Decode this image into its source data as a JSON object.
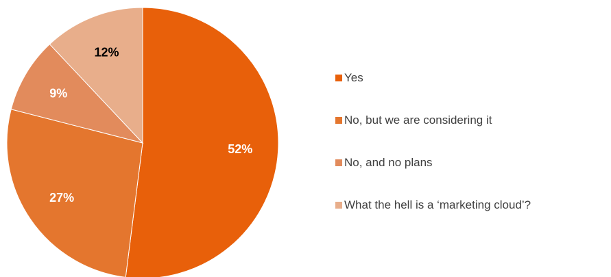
{
  "chart_data": {
    "type": "pie",
    "categories": [
      "Yes",
      "No, but we are considering it",
      "No, and no plans",
      "What the hell is a ‘marketing cloud’?"
    ],
    "values": [
      52,
      27,
      9,
      12
    ],
    "labels": [
      "52%",
      "27%",
      "9%",
      "12%"
    ],
    "colors": [
      "#E8600A",
      "#E4762E",
      "#E28B5C",
      "#E8AE8B"
    ],
    "label_colors": [
      "#ffffff",
      "#ffffff",
      "#ffffff",
      "#000000"
    ],
    "start_angle": "12 o'clock",
    "direction": "clockwise",
    "legend_position": "right"
  }
}
